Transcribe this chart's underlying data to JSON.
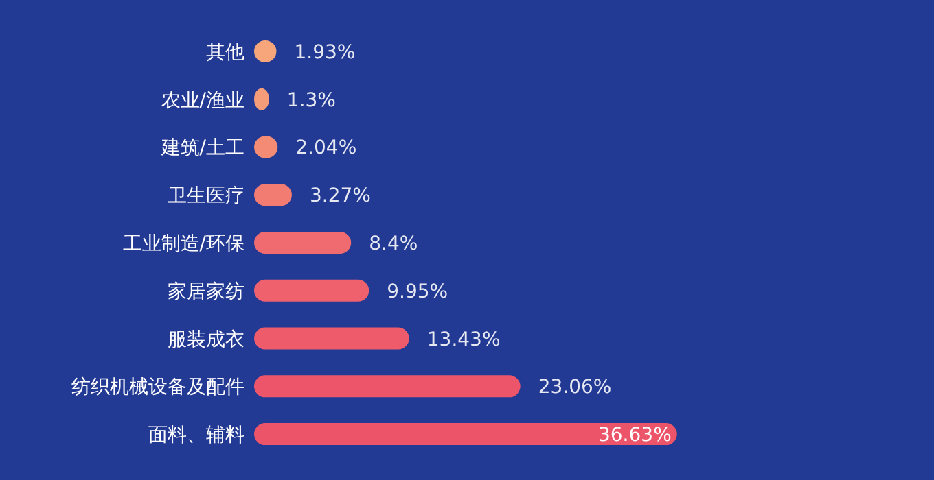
{
  "chart_data": {
    "type": "bar",
    "orientation": "horizontal",
    "categories": [
      "其他",
      "农业/渔业",
      "建筑/土工",
      "卫生医疗",
      "工业制造/环保",
      "家居家纺",
      "服装成衣",
      "纺织机械设备及配件",
      "面料、辅料"
    ],
    "values": [
      1.93,
      1.3,
      2.04,
      3.27,
      8.4,
      9.95,
      13.43,
      23.06,
      36.63
    ],
    "value_labels": [
      "1.93%",
      "1.3%",
      "2.04%",
      "3.27%",
      "8.4%",
      "9.95%",
      "13.43%",
      "23.06%",
      "36.63%"
    ],
    "colors": [
      "#f6a67a",
      "#f59c78",
      "#f48c75",
      "#f27c72",
      "#f06b6f",
      "#ef626d",
      "#ee5b6b",
      "#ed566a",
      "#ec5469"
    ]
  }
}
